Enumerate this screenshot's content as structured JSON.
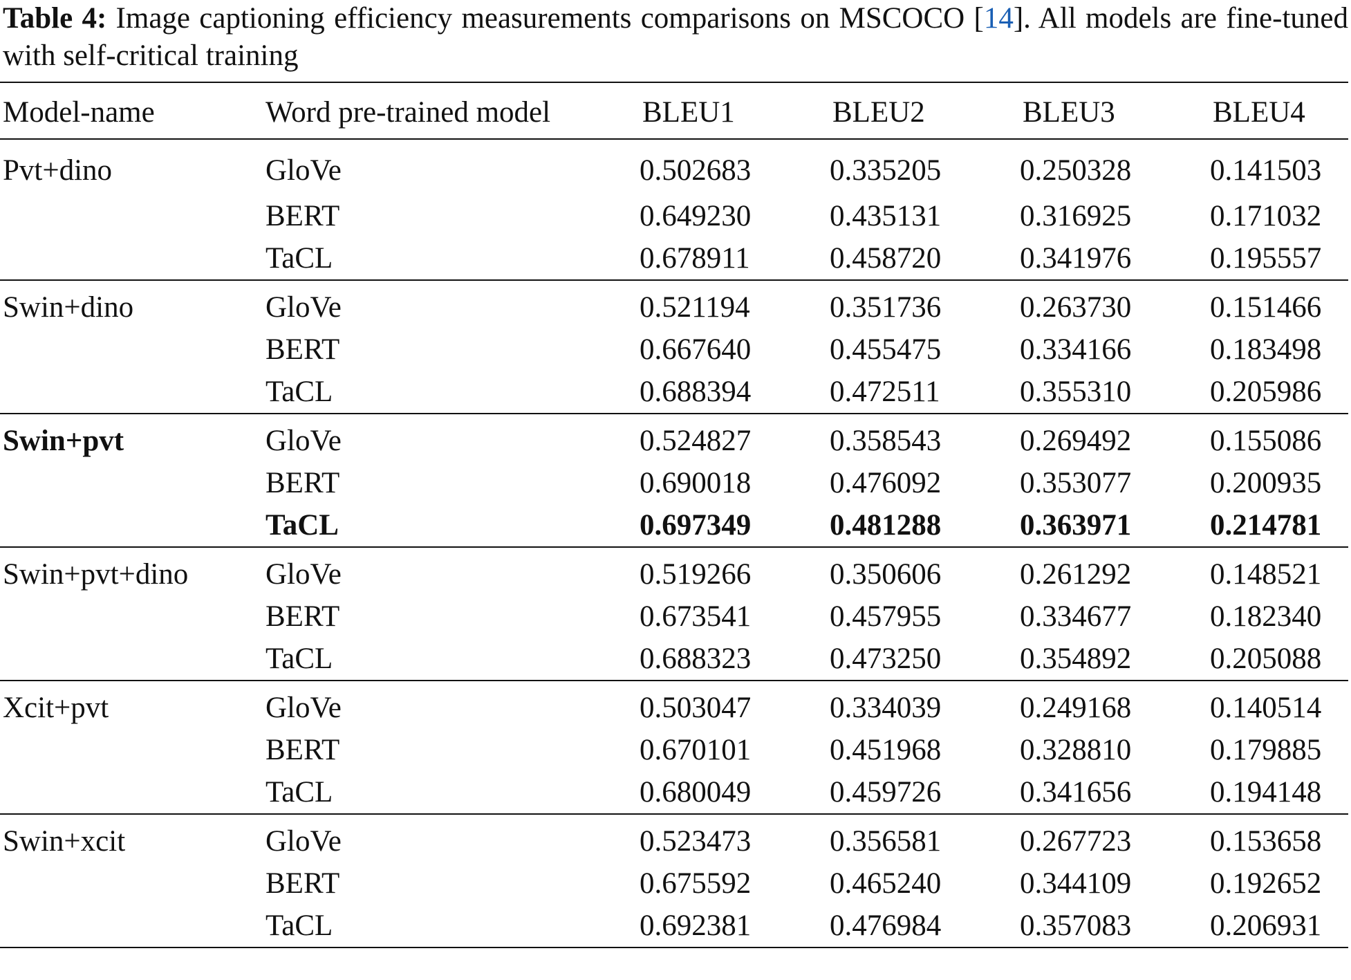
{
  "caption": {
    "label": "Table 4:",
    "text_before": " Image captioning efficiency measurements comparisons on MSCOCO [",
    "citation": "14",
    "text_after": "]. All models are fine-tuned with self-critical training"
  },
  "table": {
    "headers": [
      "Model-name",
      "Word pre-trained model",
      "BLEU1",
      "BLEU2",
      "BLEU3",
      "BLEU4"
    ],
    "groups": [
      {
        "model": "Pvt+dino",
        "rows": [
          {
            "word": "GloVe",
            "bleu1": "0.502683",
            "bleu2": "0.335205",
            "bleu3": "0.250328",
            "bleu4": "0.141503"
          },
          {
            "word": "BERT",
            "bleu1": "0.649230",
            "bleu2": "0.435131",
            "bleu3": "0.316925",
            "bleu4": "0.171032"
          },
          {
            "word": "TaCL",
            "bleu1": "0.678911",
            "bleu2": "0.458720",
            "bleu3": "0.341976",
            "bleu4": "0.195557"
          }
        ]
      },
      {
        "model": "Swin+dino",
        "rows": [
          {
            "word": "GloVe",
            "bleu1": "0.521194",
            "bleu2": "0.351736",
            "bleu3": "0.263730",
            "bleu4": "0.151466"
          },
          {
            "word": "BERT",
            "bleu1": "0.667640",
            "bleu2": "0.455475",
            "bleu3": "0.334166",
            "bleu4": "0.183498"
          },
          {
            "word": "TaCL",
            "bleu1": "0.688394",
            "bleu2": "0.472511",
            "bleu3": "0.355310",
            "bleu4": "0.205986"
          }
        ]
      },
      {
        "model": "Swin+pvt",
        "rows": [
          {
            "word": "GloVe",
            "bleu1": "0.524827",
            "bleu2": "0.358543",
            "bleu3": "0.269492",
            "bleu4": "0.155086"
          },
          {
            "word": "BERT",
            "bleu1": "0.690018",
            "bleu2": "0.476092",
            "bleu3": "0.353077",
            "bleu4": "0.200935"
          },
          {
            "word": "TaCL",
            "bleu1": "0.697349",
            "bleu2": "0.481288",
            "bleu3": "0.363971",
            "bleu4": "0.214781"
          }
        ]
      },
      {
        "model": "Swin+pvt+dino",
        "rows": [
          {
            "word": "GloVe",
            "bleu1": "0.519266",
            "bleu2": "0.350606",
            "bleu3": "0.261292",
            "bleu4": "0.148521"
          },
          {
            "word": "BERT",
            "bleu1": "0.673541",
            "bleu2": "0.457955",
            "bleu3": "0.334677",
            "bleu4": "0.182340"
          },
          {
            "word": "TaCL",
            "bleu1": "0.688323",
            "bleu2": "0.473250",
            "bleu3": "0.354892",
            "bleu4": "0.205088"
          }
        ]
      },
      {
        "model": "Xcit+pvt",
        "rows": [
          {
            "word": "GloVe",
            "bleu1": "0.503047",
            "bleu2": "0.334039",
            "bleu3": "0.249168",
            "bleu4": "0.140514"
          },
          {
            "word": "BERT",
            "bleu1": "0.670101",
            "bleu2": "0.451968",
            "bleu3": "0.328810",
            "bleu4": "0.179885"
          },
          {
            "word": "TaCL",
            "bleu1": "0.680049",
            "bleu2": "0.459726",
            "bleu3": "0.341656",
            "bleu4": "0.194148"
          }
        ]
      },
      {
        "model": "Swin+xcit",
        "rows": [
          {
            "word": "GloVe",
            "bleu1": "0.523473",
            "bleu2": "0.356581",
            "bleu3": "0.267723",
            "bleu4": "0.153658"
          },
          {
            "word": "BERT",
            "bleu1": "0.675592",
            "bleu2": "0.465240",
            "bleu3": "0.344109",
            "bleu4": "0.192652"
          },
          {
            "word": "TaCL",
            "bleu1": "0.692381",
            "bleu2": "0.476984",
            "bleu3": "0.357083",
            "bleu4": "0.206931"
          }
        ]
      }
    ],
    "bold_model_group": 2,
    "bold_row": {
      "group": 2,
      "row": 2
    }
  }
}
